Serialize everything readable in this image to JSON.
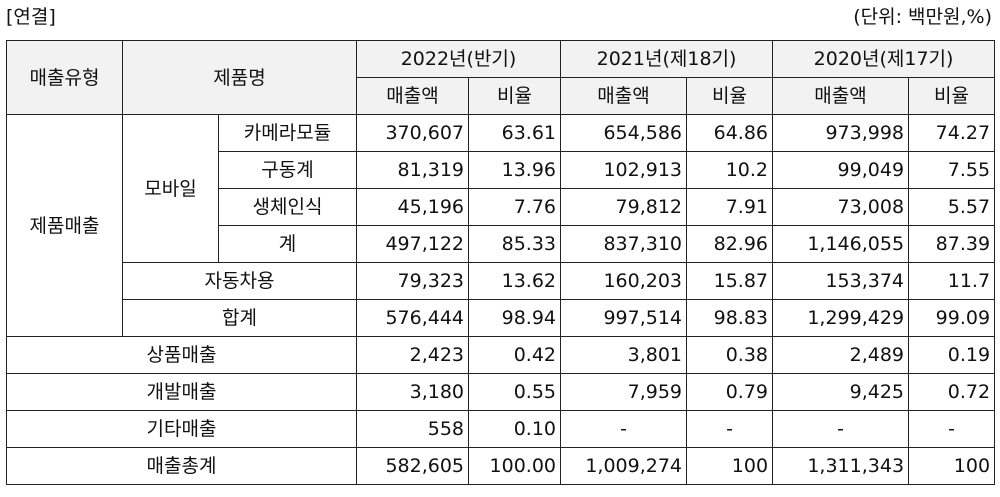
{
  "caption": {
    "left": "[연결]",
    "right": "(단위: 백만원,%)"
  },
  "header": {
    "type": "매출유형",
    "product": "제품명",
    "periods": [
      "2022년(반기)",
      "2021년(제18기)",
      "2020년(제17기)"
    ],
    "sales": "매출액",
    "ratio": "비율"
  },
  "groups": {
    "product_sales": "제품매출",
    "mobile": "모바일"
  },
  "rows": [
    {
      "label": "카메라모듈",
      "v": [
        "370,607",
        "63.61",
        "654,586",
        "64.86",
        "973,998",
        "74.27"
      ]
    },
    {
      "label": "구동계",
      "v": [
        "81,319",
        "13.96",
        "102,913",
        "10.2",
        "99,049",
        "7.55"
      ]
    },
    {
      "label": "생체인식",
      "v": [
        "45,196",
        "7.76",
        "79,812",
        "7.91",
        "73,008",
        "5.57"
      ]
    },
    {
      "label": "계",
      "v": [
        "497,122",
        "85.33",
        "837,310",
        "82.96",
        "1,146,055",
        "87.39"
      ]
    },
    {
      "label": "자동차용",
      "v": [
        "79,323",
        "13.62",
        "160,203",
        "15.87",
        "153,374",
        "11.7"
      ]
    },
    {
      "label": "합계",
      "v": [
        "576,444",
        "98.94",
        "997,514",
        "98.83",
        "1,299,429",
        "99.09"
      ]
    },
    {
      "label": "상품매출",
      "v": [
        "2,423",
        "0.42",
        "3,801",
        "0.38",
        "2,489",
        "0.19"
      ]
    },
    {
      "label": "개발매출",
      "v": [
        "3,180",
        "0.55",
        "7,959",
        "0.79",
        "9,425",
        "0.72"
      ]
    },
    {
      "label": "기타매출",
      "v": [
        "558",
        "0.10",
        "-",
        "-",
        "-",
        "-"
      ]
    },
    {
      "label": "매출총계",
      "v": [
        "582,605",
        "100.00",
        "1,009,274",
        "100",
        "1,311,343",
        "100"
      ]
    }
  ]
}
